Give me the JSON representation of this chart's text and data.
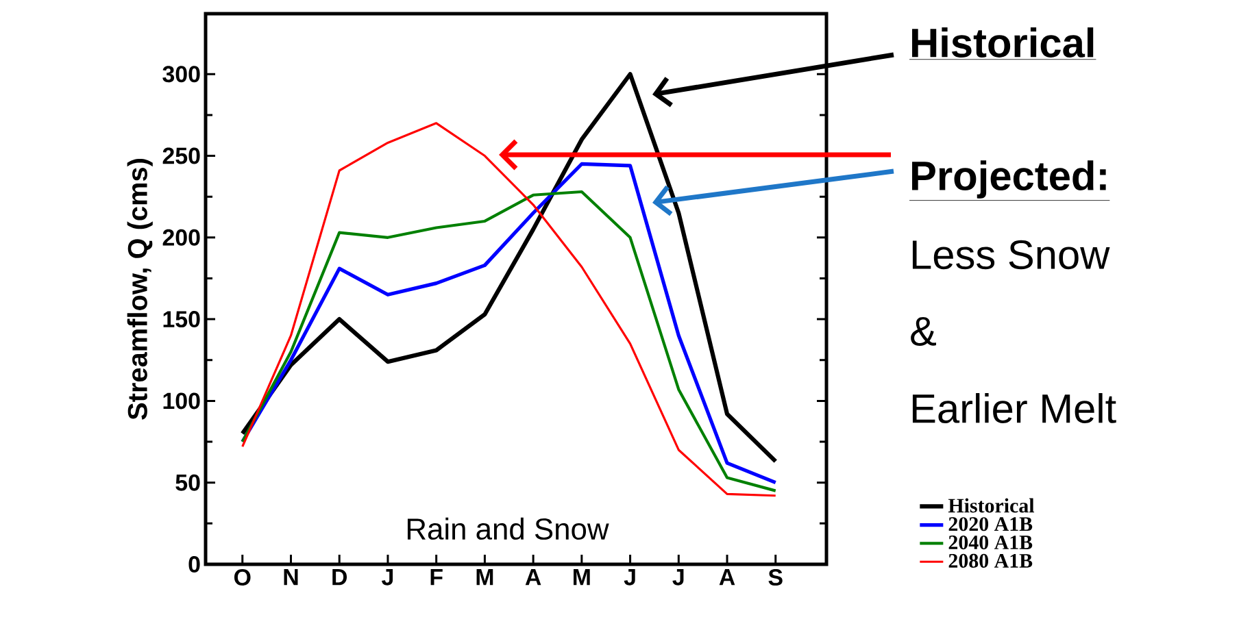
{
  "chart_data": {
    "type": "line",
    "ylabel": "Streamflow, Q (cms)",
    "categories": [
      "O",
      "N",
      "D",
      "J",
      "F",
      "M",
      "A",
      "M",
      "J",
      "J",
      "A",
      "S"
    ],
    "ylim": [
      0,
      337
    ],
    "yticks": [
      0,
      50,
      100,
      150,
      200,
      250,
      300
    ],
    "series": [
      {
        "name": "Historical",
        "color": "#000000",
        "values": [
          80,
          122,
          150,
          124,
          131,
          153,
          205,
          260,
          300,
          215,
          92,
          63
        ]
      },
      {
        "name": "2020 A1B",
        "color": "#0000ff",
        "values": [
          75,
          125,
          181,
          165,
          172,
          183,
          215,
          245,
          244,
          140,
          62,
          50
        ]
      },
      {
        "name": "2040 A1B",
        "color": "#008000",
        "values": [
          75,
          130,
          203,
          200,
          206,
          210,
          226,
          228,
          200,
          107,
          53,
          45
        ]
      },
      {
        "name": "2080 A1B",
        "color": "#ff0000",
        "values": [
          72,
          140,
          241,
          258,
          270,
          250,
          220,
          182,
          135,
          70,
          43,
          42
        ]
      }
    ],
    "legend": "bottom right",
    "annotations": [
      "Historical",
      "Projected:",
      "Less Snow",
      "&",
      "Earlier Melt",
      "Rain and Snow"
    ]
  }
}
